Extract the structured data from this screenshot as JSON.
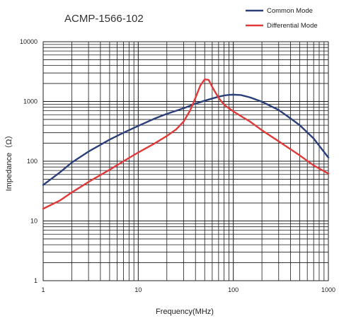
{
  "chart_data": {
    "type": "line",
    "title": "ACMP-1566-102",
    "xlabel": "Frequency(MHz)",
    "ylabel": "Impedance（Ω）",
    "x_scale": "log",
    "y_scale": "log",
    "xlim": [
      1,
      1000
    ],
    "ylim": [
      1,
      10000
    ],
    "x_ticks": [
      1,
      10,
      100,
      1000
    ],
    "y_ticks": [
      1,
      10,
      100,
      1000,
      10000
    ],
    "x_tick_labels": [
      "1",
      "10",
      "100",
      "1000"
    ],
    "y_tick_labels": [
      "1",
      "10",
      "100",
      "1000",
      "10000"
    ],
    "grid": true,
    "legend_position": "top-right",
    "series": [
      {
        "name": "Common Mode",
        "color": "#2b3f7a",
        "points": [
          [
            1,
            40
          ],
          [
            1.5,
            65
          ],
          [
            2,
            95
          ],
          [
            3,
            145
          ],
          [
            5,
            230
          ],
          [
            7,
            300
          ],
          [
            10,
            390
          ],
          [
            15,
            520
          ],
          [
            20,
            620
          ],
          [
            30,
            770
          ],
          [
            40,
            920
          ],
          [
            50,
            1030
          ],
          [
            60,
            1120
          ],
          [
            70,
            1200
          ],
          [
            80,
            1260
          ],
          [
            90,
            1290
          ],
          [
            100,
            1300
          ],
          [
            120,
            1280
          ],
          [
            150,
            1170
          ],
          [
            200,
            990
          ],
          [
            300,
            720
          ],
          [
            400,
            520
          ],
          [
            500,
            400
          ],
          [
            700,
            240
          ],
          [
            1000,
            115
          ]
        ]
      },
      {
        "name": "Differential Mode",
        "color": "#e03a3a",
        "points": [
          [
            1,
            16
          ],
          [
            1.5,
            22
          ],
          [
            2,
            30
          ],
          [
            3,
            45
          ],
          [
            5,
            72
          ],
          [
            7,
            100
          ],
          [
            10,
            140
          ],
          [
            15,
            200
          ],
          [
            20,
            265
          ],
          [
            25,
            340
          ],
          [
            30,
            460
          ],
          [
            35,
            700
          ],
          [
            40,
            1150
          ],
          [
            45,
            1850
          ],
          [
            50,
            2350
          ],
          [
            55,
            2300
          ],
          [
            60,
            1750
          ],
          [
            70,
            1150
          ],
          [
            80,
            880
          ],
          [
            100,
            680
          ],
          [
            150,
            460
          ],
          [
            200,
            330
          ],
          [
            300,
            215
          ],
          [
            500,
            125
          ],
          [
            700,
            85
          ],
          [
            1000,
            62
          ]
        ]
      }
    ]
  }
}
